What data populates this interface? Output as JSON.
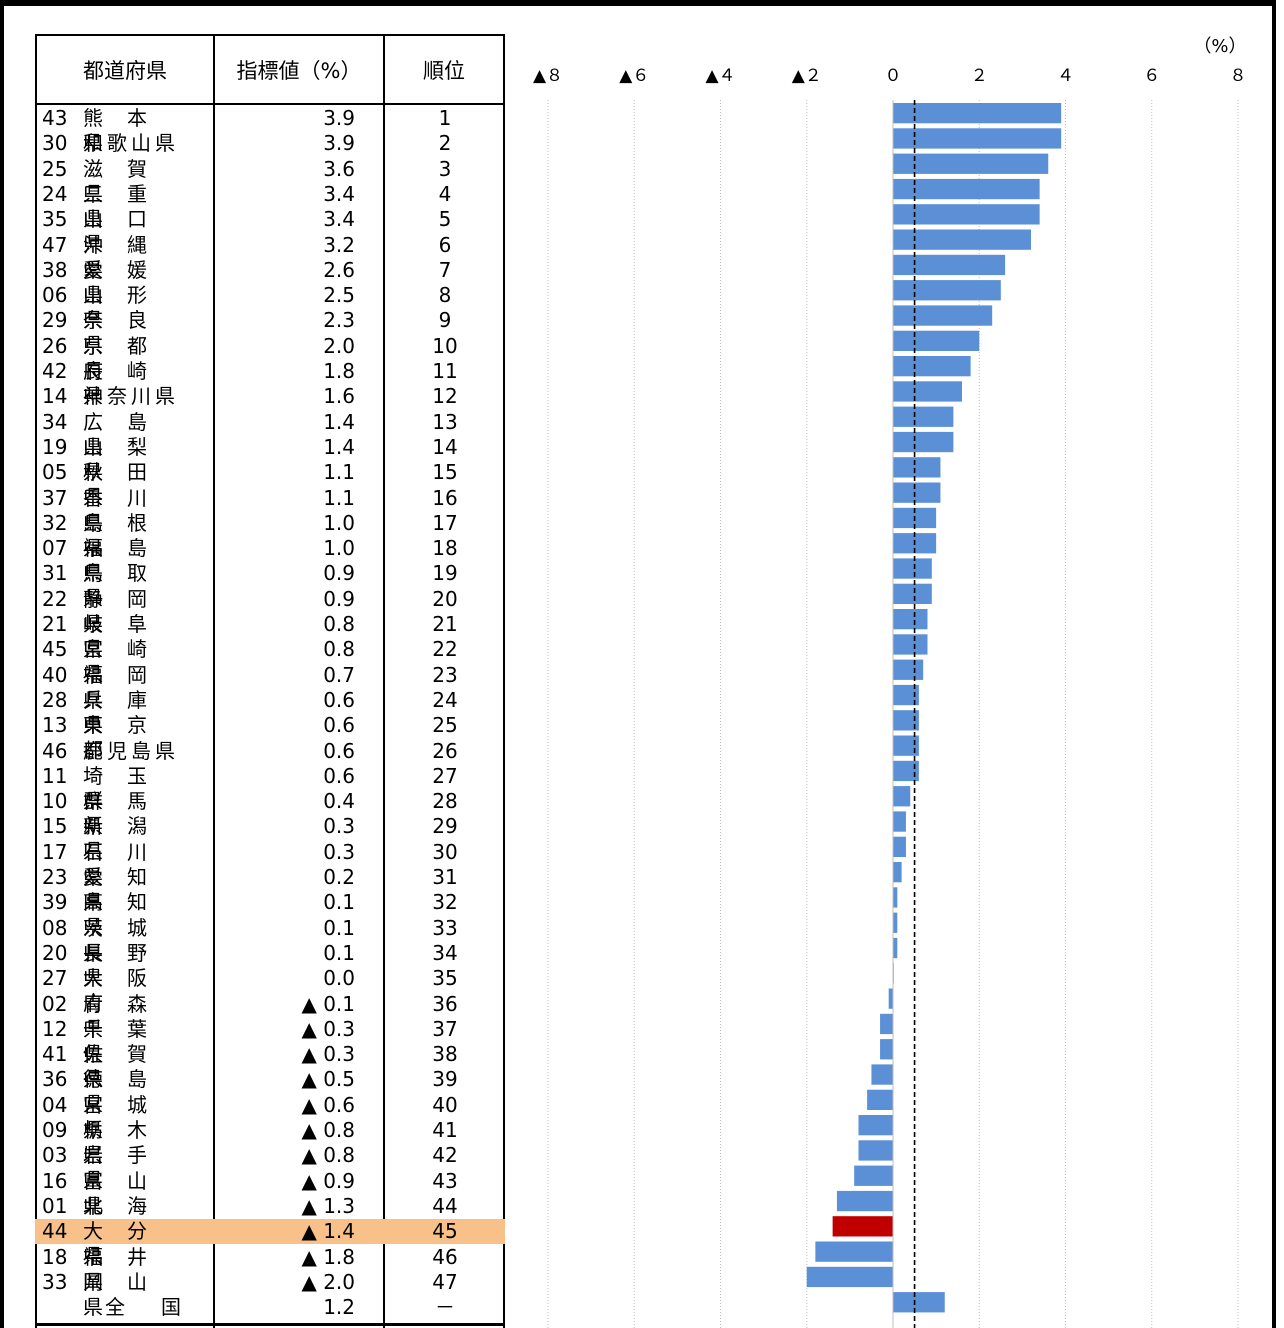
{
  "table": {
    "headers": {
      "prefecture": "都道府県",
      "value": "指標値（%）",
      "rank": "順位"
    }
  },
  "chart_data": {
    "type": "bar",
    "orientation": "horizontal",
    "unit_label": "（%）",
    "xlim": [
      -8,
      8
    ],
    "x_ticks": [
      -8,
      -6,
      -4,
      -2,
      0,
      2,
      4,
      6,
      8
    ],
    "x_tick_labels": [
      "▲８",
      "▲６",
      "▲４",
      "▲２",
      "０",
      "２",
      "４",
      "６",
      "８"
    ],
    "reference_line": 0.5,
    "colors": {
      "bar": "#5b8fd6",
      "highlight_bar": "#c00000",
      "highlight_row": "#f7c189"
    },
    "rows": [
      {
        "code": "43",
        "name": "熊本県",
        "value": 3.9,
        "value_text": "3.9",
        "rank": "1"
      },
      {
        "code": "30",
        "name": "和歌山県",
        "value": 3.9,
        "value_text": "3.9",
        "rank": "2"
      },
      {
        "code": "25",
        "name": "滋賀県",
        "value": 3.6,
        "value_text": "3.6",
        "rank": "3"
      },
      {
        "code": "24",
        "name": "三重県",
        "value": 3.4,
        "value_text": "3.4",
        "rank": "4"
      },
      {
        "code": "35",
        "name": "山口県",
        "value": 3.4,
        "value_text": "3.4",
        "rank": "5"
      },
      {
        "code": "47",
        "name": "沖縄県",
        "value": 3.2,
        "value_text": "3.2",
        "rank": "6"
      },
      {
        "code": "38",
        "name": "愛媛県",
        "value": 2.6,
        "value_text": "2.6",
        "rank": "7"
      },
      {
        "code": "06",
        "name": "山形県",
        "value": 2.5,
        "value_text": "2.5",
        "rank": "8"
      },
      {
        "code": "29",
        "name": "奈良県",
        "value": 2.3,
        "value_text": "2.3",
        "rank": "9"
      },
      {
        "code": "26",
        "name": "京都府",
        "value": 2.0,
        "value_text": "2.0",
        "rank": "10"
      },
      {
        "code": "42",
        "name": "長崎県",
        "value": 1.8,
        "value_text": "1.8",
        "rank": "11"
      },
      {
        "code": "14",
        "name": "神奈川県",
        "value": 1.6,
        "value_text": "1.6",
        "rank": "12"
      },
      {
        "code": "34",
        "name": "広島県",
        "value": 1.4,
        "value_text": "1.4",
        "rank": "13"
      },
      {
        "code": "19",
        "name": "山梨県",
        "value": 1.4,
        "value_text": "1.4",
        "rank": "14"
      },
      {
        "code": "05",
        "name": "秋田県",
        "value": 1.1,
        "value_text": "1.1",
        "rank": "15"
      },
      {
        "code": "37",
        "name": "香川県",
        "value": 1.1,
        "value_text": "1.1",
        "rank": "16"
      },
      {
        "code": "32",
        "name": "島根県",
        "value": 1.0,
        "value_text": "1.0",
        "rank": "17"
      },
      {
        "code": "07",
        "name": "福島県",
        "value": 1.0,
        "value_text": "1.0",
        "rank": "18"
      },
      {
        "code": "31",
        "name": "鳥取県",
        "value": 0.9,
        "value_text": "0.9",
        "rank": "19"
      },
      {
        "code": "22",
        "name": "静岡県",
        "value": 0.9,
        "value_text": "0.9",
        "rank": "20"
      },
      {
        "code": "21",
        "name": "岐阜県",
        "value": 0.8,
        "value_text": "0.8",
        "rank": "21"
      },
      {
        "code": "45",
        "name": "宮崎県",
        "value": 0.8,
        "value_text": "0.8",
        "rank": "22"
      },
      {
        "code": "40",
        "name": "福岡県",
        "value": 0.7,
        "value_text": "0.7",
        "rank": "23"
      },
      {
        "code": "28",
        "name": "兵庫県",
        "value": 0.6,
        "value_text": "0.6",
        "rank": "24"
      },
      {
        "code": "13",
        "name": "東京都",
        "value": 0.6,
        "value_text": "0.6",
        "rank": "25"
      },
      {
        "code": "46",
        "name": "鹿児島県",
        "value": 0.6,
        "value_text": "0.6",
        "rank": "26"
      },
      {
        "code": "11",
        "name": "埼玉県",
        "value": 0.6,
        "value_text": "0.6",
        "rank": "27"
      },
      {
        "code": "10",
        "name": "群馬県",
        "value": 0.4,
        "value_text": "0.4",
        "rank": "28"
      },
      {
        "code": "15",
        "name": "新潟県",
        "value": 0.3,
        "value_text": "0.3",
        "rank": "29"
      },
      {
        "code": "17",
        "name": "石川県",
        "value": 0.3,
        "value_text": "0.3",
        "rank": "30"
      },
      {
        "code": "23",
        "name": "愛知県",
        "value": 0.2,
        "value_text": "0.2",
        "rank": "31"
      },
      {
        "code": "39",
        "name": "高知県",
        "value": 0.1,
        "value_text": "0.1",
        "rank": "32"
      },
      {
        "code": "08",
        "name": "茨城県",
        "value": 0.1,
        "value_text": "0.1",
        "rank": "33"
      },
      {
        "code": "20",
        "name": "長野県",
        "value": 0.1,
        "value_text": "0.1",
        "rank": "34"
      },
      {
        "code": "27",
        "name": "大阪府",
        "value": 0.0,
        "value_text": "0.0",
        "rank": "35"
      },
      {
        "code": "02",
        "name": "青森県",
        "value": -0.1,
        "value_text": "▲ 0.1",
        "rank": "36"
      },
      {
        "code": "12",
        "name": "千葉県",
        "value": -0.3,
        "value_text": "▲ 0.3",
        "rank": "37"
      },
      {
        "code": "41",
        "name": "佐賀県",
        "value": -0.3,
        "value_text": "▲ 0.3",
        "rank": "38"
      },
      {
        "code": "36",
        "name": "徳島県",
        "value": -0.5,
        "value_text": "▲ 0.5",
        "rank": "39"
      },
      {
        "code": "04",
        "name": "宮城県",
        "value": -0.6,
        "value_text": "▲ 0.6",
        "rank": "40"
      },
      {
        "code": "09",
        "name": "栃木県",
        "value": -0.8,
        "value_text": "▲ 0.8",
        "rank": "41"
      },
      {
        "code": "03",
        "name": "岩手県",
        "value": -0.8,
        "value_text": "▲ 0.8",
        "rank": "42"
      },
      {
        "code": "16",
        "name": "富山県",
        "value": -0.9,
        "value_text": "▲ 0.9",
        "rank": "43"
      },
      {
        "code": "01",
        "name": "北海道",
        "value": -1.3,
        "value_text": "▲ 1.3",
        "rank": "44"
      },
      {
        "code": "44",
        "name": "大分県",
        "value": -1.4,
        "value_text": "▲ 1.4",
        "rank": "45",
        "highlight": true
      },
      {
        "code": "18",
        "name": "福井県",
        "value": -1.8,
        "value_text": "▲ 1.8",
        "rank": "46"
      },
      {
        "code": "33",
        "name": "岡山県",
        "value": -2.0,
        "value_text": "▲ 2.0",
        "rank": "47"
      },
      {
        "code": "",
        "name": "全国",
        "value": 1.2,
        "value_text": "1.2",
        "rank": "－",
        "national": true
      }
    ]
  }
}
